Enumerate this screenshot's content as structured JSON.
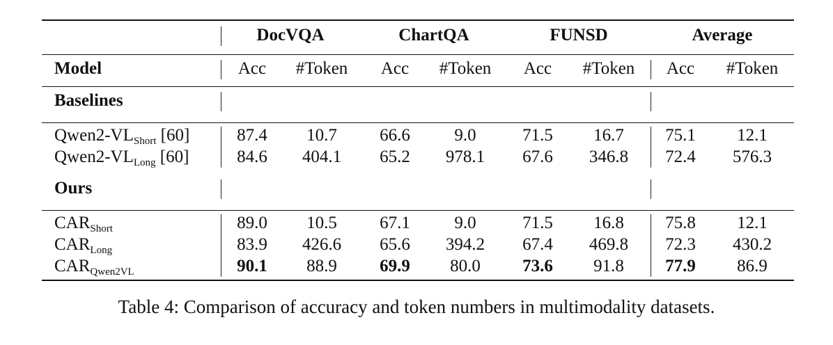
{
  "table": {
    "group_headers": [
      "DocVQA",
      "ChartQA",
      "FUNSD",
      "Average"
    ],
    "model_header": "Model",
    "sub_headers": [
      "Acc",
      "#Token",
      "Acc",
      "#Token",
      "Acc",
      "#Token",
      "Acc",
      "#Token"
    ],
    "sections": [
      {
        "title": "Baselines",
        "rows": [
          {
            "base": "Qwen2-VL",
            "sub": "Short",
            "suffix": " [60]",
            "values": [
              "87.4",
              "10.7",
              "66.6",
              "9.0",
              "71.5",
              "16.7",
              "75.1",
              "12.1"
            ],
            "bold": []
          },
          {
            "base": "Qwen2-VL",
            "sub": "Long",
            "suffix": " [60]",
            "values": [
              "84.6",
              "404.1",
              "65.2",
              "978.1",
              "67.6",
              "346.8",
              "72.4",
              "576.3"
            ],
            "bold": []
          }
        ]
      },
      {
        "title": "Ours",
        "rows": [
          {
            "base": "CAR",
            "sub": "Short",
            "suffix": "",
            "values": [
              "89.0",
              "10.5",
              "67.1",
              "9.0",
              "71.5",
              "16.8",
              "75.8",
              "12.1"
            ],
            "bold": []
          },
          {
            "base": "CAR",
            "sub": "Long",
            "suffix": "",
            "values": [
              "83.9",
              "426.6",
              "65.6",
              "394.2",
              "67.4",
              "469.8",
              "72.3",
              "430.2"
            ],
            "bold": []
          },
          {
            "base": "CAR",
            "sub": "Qwen2VL",
            "suffix": "",
            "values": [
              "90.1",
              "88.9",
              "69.9",
              "80.0",
              "73.6",
              "91.8",
              "77.9",
              "86.9"
            ],
            "bold": [
              0,
              2,
              4,
              6
            ]
          }
        ]
      }
    ]
  },
  "caption": "Table 4: Comparison of accuracy and token numbers in multimodality datasets."
}
